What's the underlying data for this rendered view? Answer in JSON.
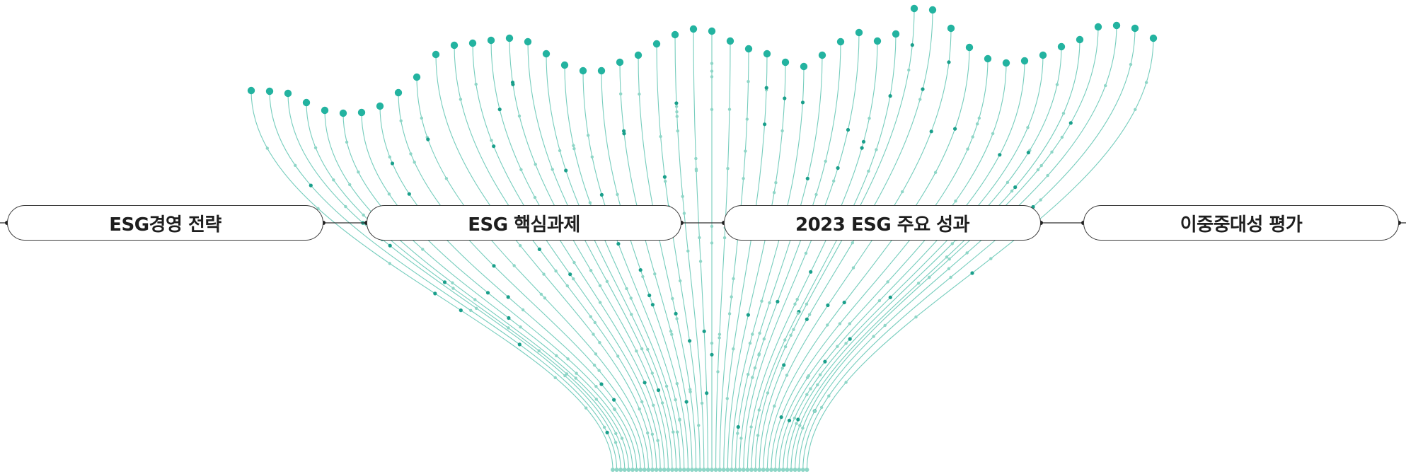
{
  "process_steps": [
    {
      "label": "ESG경영 전략"
    },
    {
      "label": "ESG 핵심과제"
    },
    {
      "label": "2023 ESG 주요 성과"
    },
    {
      "label": "이중중대성 평가"
    }
  ],
  "colors": {
    "line": "#76cdbd",
    "head_dot": "#23b3a0",
    "light_dot": "#8ed6c7",
    "dark_dot": "#1a9f8b",
    "connector": "#333333",
    "pill_border": "#3a3a3a",
    "text": "#1e1e1e"
  }
}
